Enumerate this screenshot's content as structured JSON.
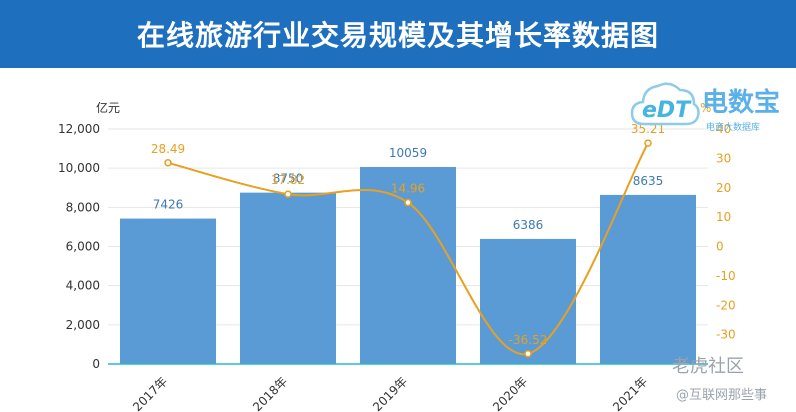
{
  "page": {
    "title": "在线旅游行业交易规模及其增长率数据图"
  },
  "watermarks": {
    "logo_brand": "电数宝",
    "logo_sub": "电商大数据库",
    "logo_mark": "eDT",
    "site1": "老虎社区",
    "site2": "@互联网那些事"
  },
  "chart_data": {
    "type": "bar",
    "categories": [
      "2017年",
      "2018年",
      "2019年",
      "2020年",
      "2021年"
    ],
    "series": [
      {
        "values": [
          7426,
          8750,
          10059,
          6386,
          8635
        ],
        "labels": [
          "7426",
          "8750",
          "10059",
          "6386",
          "8635"
        ],
        "axis": "left",
        "color": "#5b9bd5"
      },
      {
        "type": "line",
        "values": [
          28.49,
          17.82,
          14.96,
          -36.52,
          35.21
        ],
        "labels": [
          "28.49",
          "17.82",
          "14.96",
          "-36.52",
          "35.21"
        ],
        "axis": "right",
        "color": "#e8a020"
      }
    ],
    "yleft": {
      "unit": "亿元",
      "lim": [
        0,
        12000
      ],
      "ticks": [
        "0",
        "2,000",
        "4,000",
        "6,000",
        "8,000",
        "10,000",
        "12,000"
      ],
      "values": [
        0,
        2000,
        4000,
        6000,
        8000,
        10000,
        12000
      ]
    },
    "yright": {
      "unit": "%",
      "lim": [
        -40,
        40
      ],
      "ticks": [
        "-30",
        "-20",
        "-10",
        "0",
        "10",
        "20",
        "30",
        "40"
      ],
      "values": [
        -30,
        -20,
        -10,
        0,
        10,
        20,
        30,
        40
      ]
    },
    "grid": true,
    "legend": "none"
  }
}
